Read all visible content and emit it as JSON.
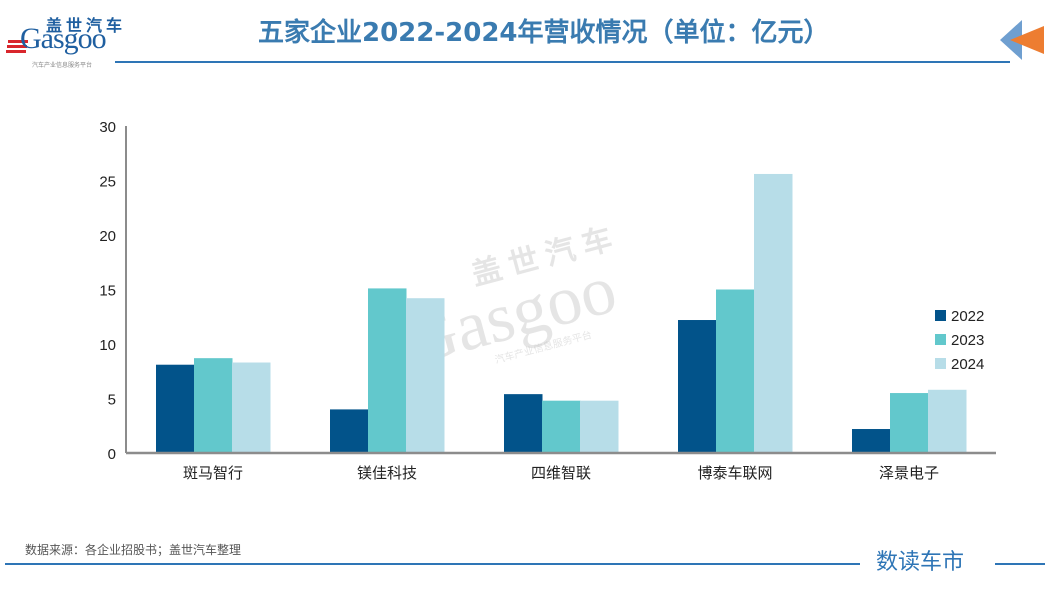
{
  "header": {
    "logo_cn": "盖世汽车",
    "logo_en": "Gasgoo",
    "logo_sub": "汽车产业信息服务平台",
    "title": "五家企业2022-2024年营收情况（单位：亿元）"
  },
  "watermark": {
    "cn": "盖世汽车",
    "en": "Gasgoo",
    "sub": "汽车产业信息服务平台"
  },
  "footer": {
    "source": "数据来源：各企业招股书；盖世汽车整理",
    "brand": "数读车市"
  },
  "colors": {
    "accent": "#2e75b6",
    "title": "#3a7bb0",
    "series_2022": "#02538a",
    "series_2023": "#62c8cc",
    "series_2024": "#b7dde8",
    "axis": "#8c8c8c",
    "arrow_blue": "#6f9fd0",
    "arrow_orange": "#ed7d31"
  },
  "chart_data": {
    "type": "bar",
    "title": "五家企业2022-2024年营收情况（单位：亿元）",
    "xlabel": "",
    "ylabel": "",
    "categories": [
      "斑马智行",
      "镁佳科技",
      "四维智联",
      "博泰车联网",
      "泽景电子"
    ],
    "series": [
      {
        "name": "2022",
        "values": [
          8.1,
          4.0,
          5.4,
          12.2,
          2.2
        ]
      },
      {
        "name": "2023",
        "values": [
          8.7,
          15.1,
          4.8,
          15.0,
          5.5
        ]
      },
      {
        "name": "2024",
        "values": [
          8.3,
          14.2,
          4.8,
          25.6,
          5.8
        ]
      }
    ],
    "ylim": [
      0,
      30
    ],
    "yticks": [
      0,
      5,
      10,
      15,
      20,
      25,
      30
    ],
    "grid": false,
    "legend_position": "right"
  }
}
